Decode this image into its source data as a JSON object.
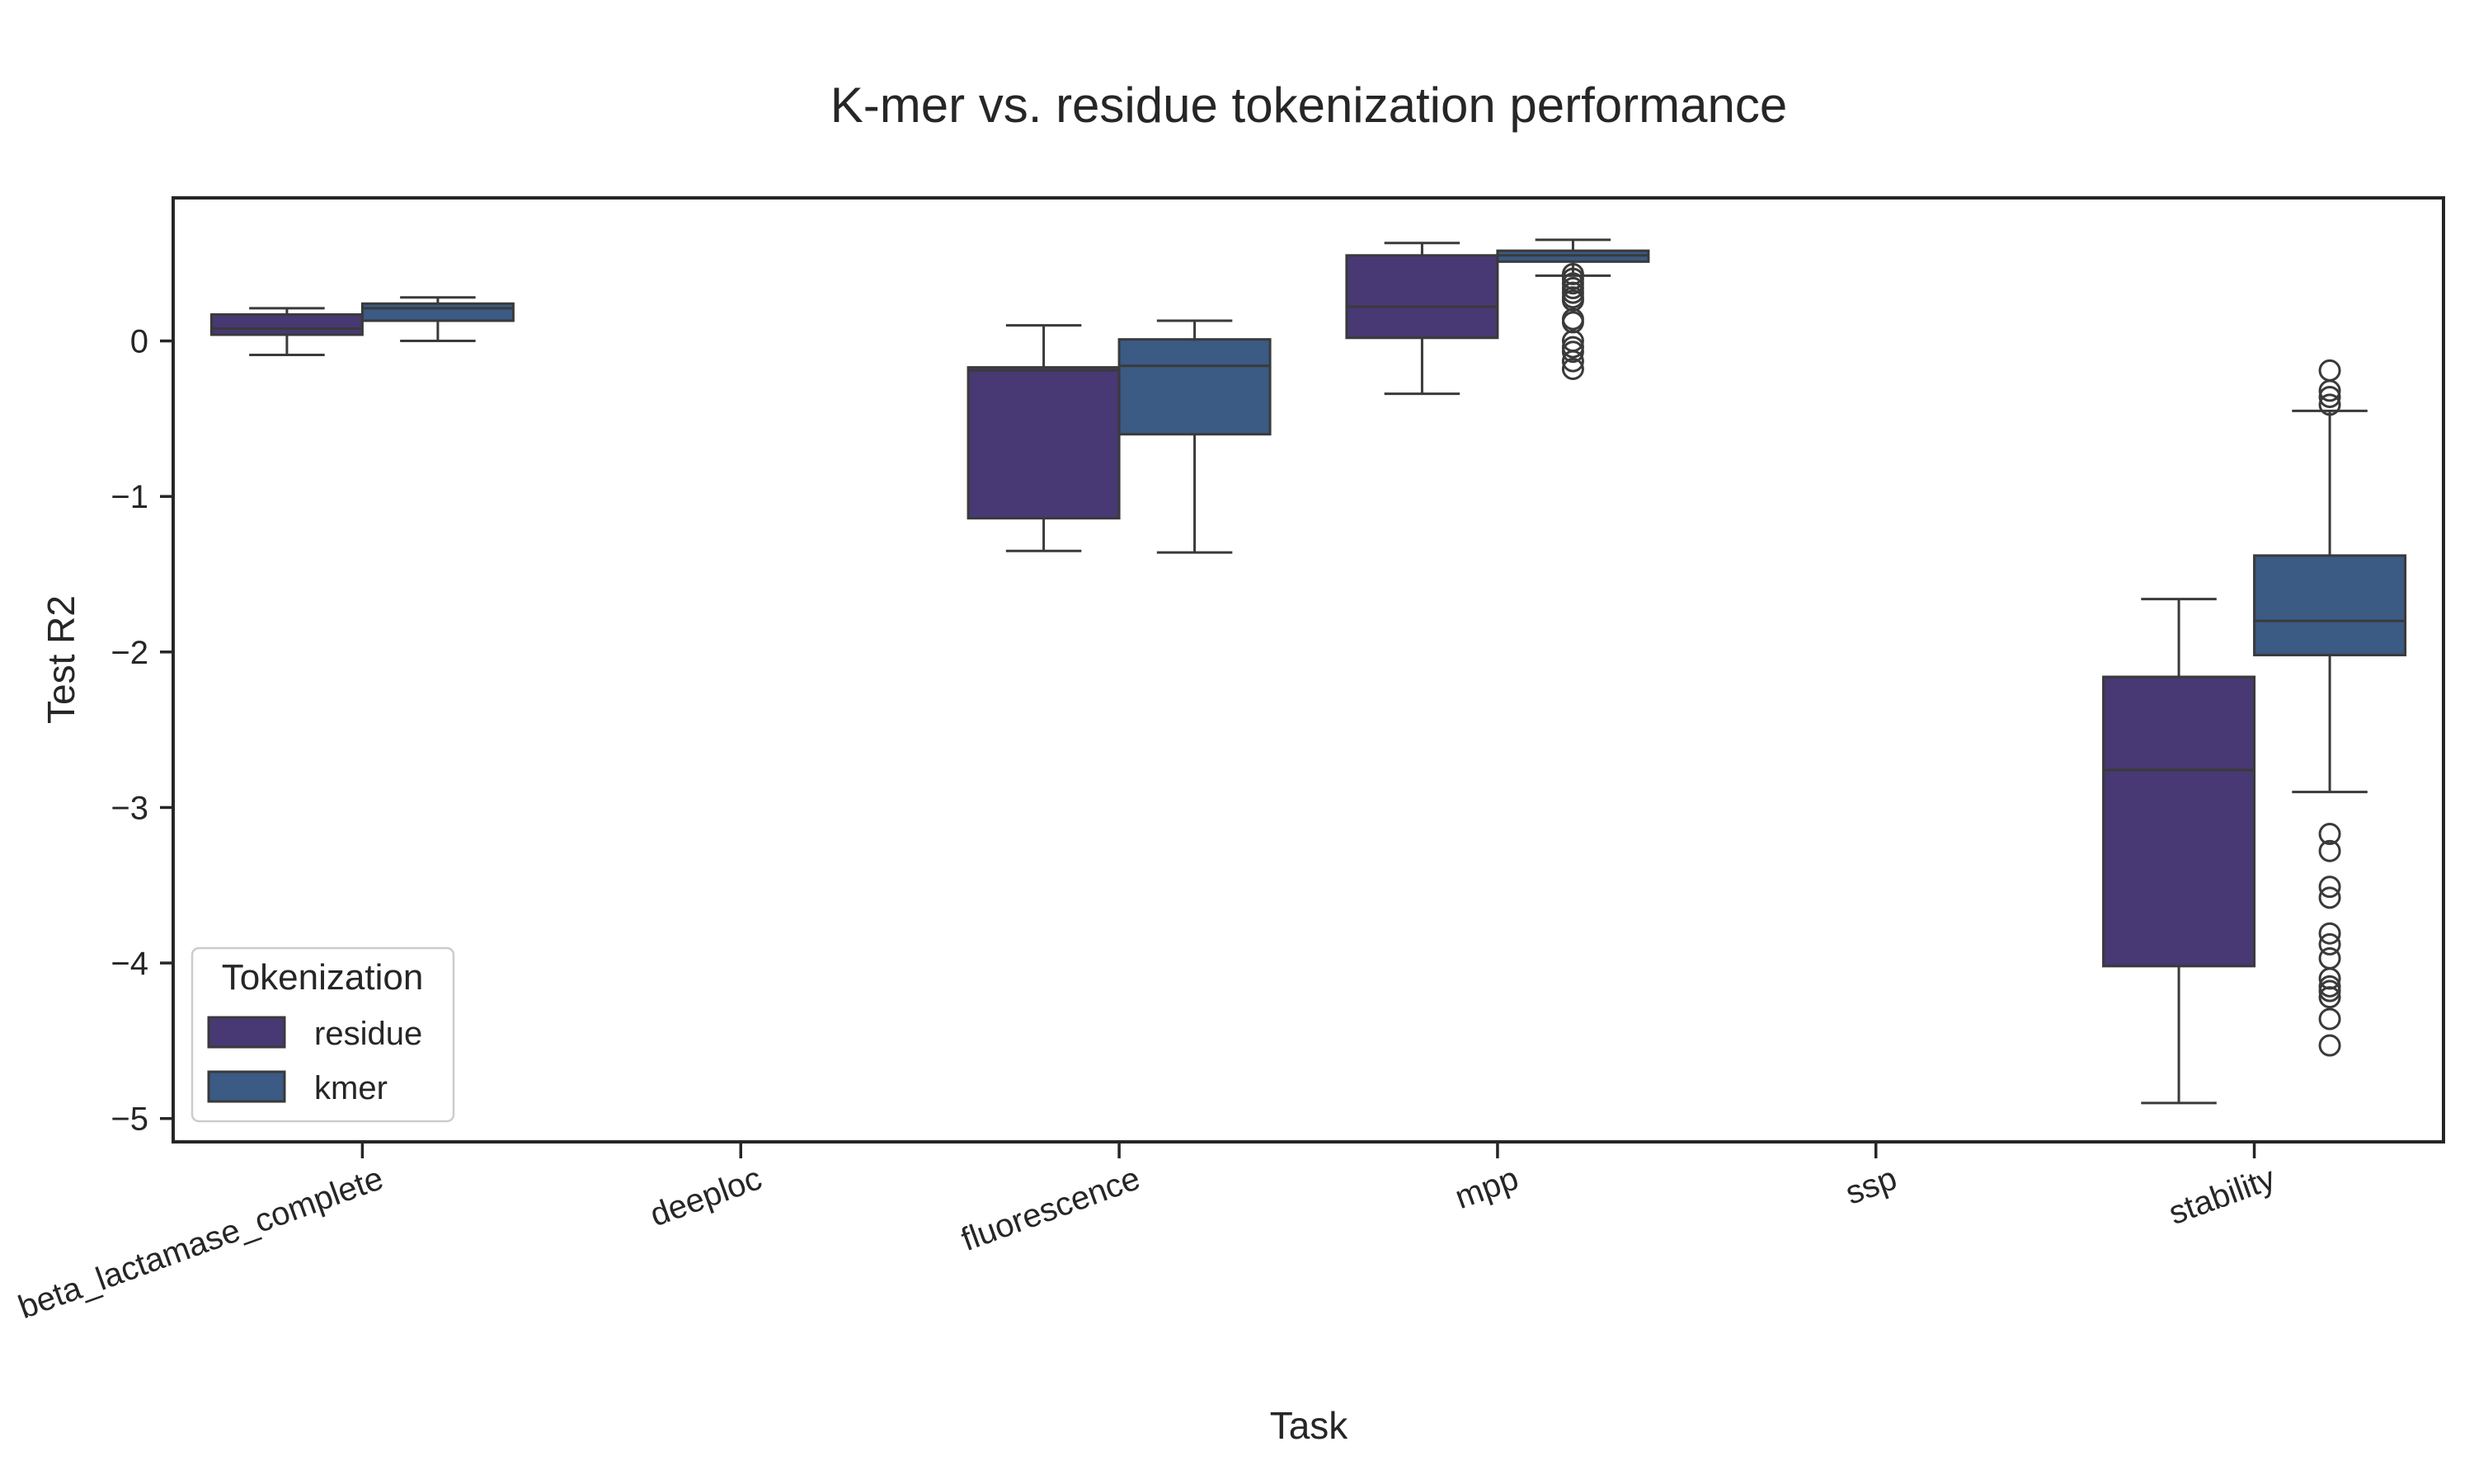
{
  "chart_data": {
    "type": "box",
    "title": "K-mer vs. residue tokenization performance",
    "xlabel": "Task",
    "ylabel": "Test R2",
    "ylim": [
      -5.15,
      0.92
    ],
    "yticks": [
      0,
      -1,
      -2,
      -3,
      -4,
      -5
    ],
    "ytick_labels": [
      "0",
      "−1",
      "−2",
      "−3",
      "−4",
      "−5"
    ],
    "categories": [
      "beta_lactamase_complete",
      "deeploc",
      "fluorescence",
      "mpp",
      "ssp",
      "stability"
    ],
    "grid": false,
    "legend": {
      "title": "Tokenization",
      "position": "lower-left"
    },
    "series": [
      {
        "name": "residue",
        "color": "#483873",
        "boxes": [
          {
            "category": "beta_lactamase_complete",
            "whislo": -0.09,
            "q1": 0.04,
            "med": 0.08,
            "q3": 0.17,
            "whishi": 0.21,
            "fliers": []
          },
          {
            "category": "deeploc",
            "empty": true
          },
          {
            "category": "fluorescence",
            "whislo": -1.35,
            "q1": -1.14,
            "med": -0.19,
            "q3": -0.17,
            "whishi": 0.1,
            "fliers": []
          },
          {
            "category": "mpp",
            "whislo": -0.34,
            "q1": 0.02,
            "med": 0.22,
            "q3": 0.55,
            "whishi": 0.63,
            "fliers": []
          },
          {
            "category": "ssp",
            "empty": true
          },
          {
            "category": "stability",
            "whislo": -4.9,
            "q1": -4.02,
            "med": -2.76,
            "q3": -2.16,
            "whishi": -1.66,
            "fliers": []
          }
        ]
      },
      {
        "name": "kmer",
        "color": "#3b5a84",
        "boxes": [
          {
            "category": "beta_lactamase_complete",
            "whislo": 0.0,
            "q1": 0.13,
            "med": 0.21,
            "q3": 0.24,
            "whishi": 0.28,
            "fliers": []
          },
          {
            "category": "deeploc",
            "empty": true
          },
          {
            "category": "fluorescence",
            "whislo": -1.36,
            "q1": -0.6,
            "med": -0.16,
            "q3": 0.01,
            "whishi": 0.13,
            "fliers": []
          },
          {
            "category": "mpp",
            "whislo": 0.42,
            "q1": 0.51,
            "med": 0.55,
            "q3": 0.58,
            "whishi": 0.65,
            "fliers": [
              0.43,
              0.4,
              0.37,
              0.34,
              0.31,
              0.28,
              0.26,
              0.14,
              0.12,
              0.0,
              -0.04,
              -0.07,
              -0.13,
              -0.18
            ]
          },
          {
            "category": "ssp",
            "empty": true
          },
          {
            "category": "stability",
            "whislo": -2.9,
            "q1": -2.02,
            "med": -1.8,
            "q3": -1.38,
            "whishi": -0.45,
            "fliers": [
              -0.19,
              -0.32,
              -0.36,
              -0.41,
              -3.17,
              -3.28,
              -3.51,
              -3.58,
              -3.81,
              -3.88,
              -3.97,
              -4.1,
              -4.15,
              -4.18,
              -4.22,
              -4.36,
              -4.53
            ]
          }
        ]
      }
    ]
  }
}
